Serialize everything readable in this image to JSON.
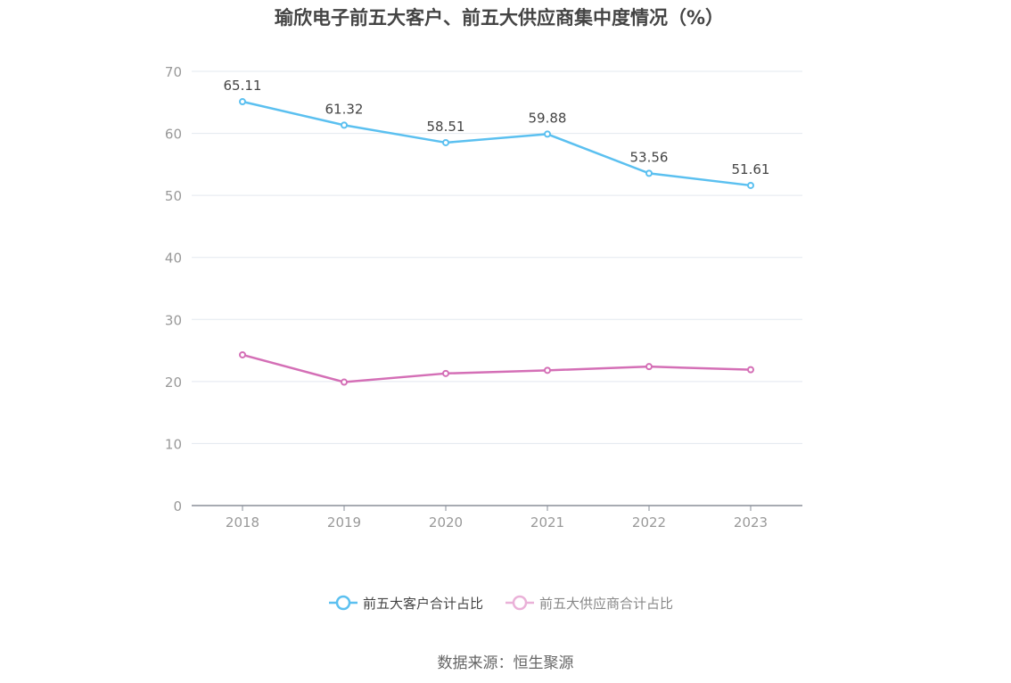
{
  "chart_data": {
    "type": "line",
    "title": "瑜欣电子前五大客户、前五大供应商集中度情况（%）",
    "categories": [
      "2018",
      "2019",
      "2020",
      "2021",
      "2022",
      "2023"
    ],
    "ylim": [
      0,
      70
    ],
    "yticks": [
      0,
      10,
      20,
      30,
      40,
      50,
      60,
      70
    ],
    "grid": true,
    "legend_position": "bottom",
    "series": [
      {
        "name": "前五大客户合计占比",
        "color": "#5bc0f0",
        "values": [
          65.11,
          61.32,
          58.51,
          59.88,
          53.56,
          51.61
        ],
        "labels": [
          "65.11",
          "61.32",
          "58.51",
          "59.88",
          "53.56",
          "51.61"
        ]
      },
      {
        "name": "前五大供应商合计占比",
        "color": "#d46fb6",
        "legend_color": "#eab1d8",
        "values": [
          24.3,
          19.9,
          21.3,
          21.8,
          22.4,
          21.9
        ]
      }
    ]
  },
  "source": "数据来源：恒生聚源"
}
